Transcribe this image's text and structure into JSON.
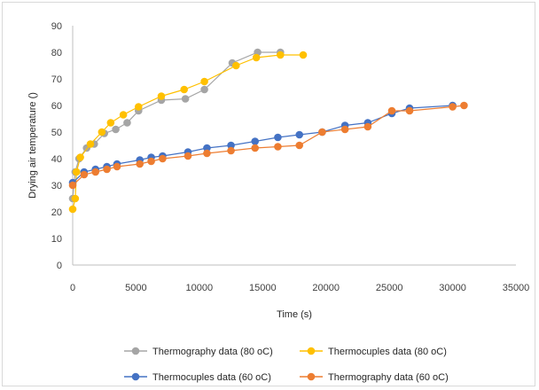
{
  "chart_data": {
    "type": "scatter",
    "title": "",
    "xlabel": "Time (s)",
    "ylabel": "Drying air temperature ()",
    "xlim": [
      0,
      35000
    ],
    "ylim": [
      0,
      90
    ],
    "x_ticks": [
      0,
      5000,
      10000,
      15000,
      20000,
      25000,
      30000,
      35000
    ],
    "y_ticks": [
      0,
      10,
      20,
      30,
      40,
      50,
      60,
      70,
      80,
      90
    ],
    "grid": false,
    "legend_position": "bottom",
    "series": [
      {
        "name": "Thermography data (80 oC)",
        "color": "#a5a5a5",
        "points": [
          [
            0,
            25
          ],
          [
            200,
            35
          ],
          [
            500,
            40
          ],
          [
            1100,
            44
          ],
          [
            1700,
            45.5
          ],
          [
            2500,
            49.5
          ],
          [
            3400,
            51
          ],
          [
            4300,
            53.5
          ],
          [
            5200,
            58
          ],
          [
            7000,
            62
          ],
          [
            8900,
            62.5
          ],
          [
            10400,
            66
          ],
          [
            12600,
            76
          ],
          [
            14600,
            80
          ],
          [
            16400,
            80
          ]
        ]
      },
      {
        "name": "Thermocuples data (80 oC)",
        "color": "#ffc000",
        "points": [
          [
            0,
            21
          ],
          [
            200,
            25
          ],
          [
            300,
            35
          ],
          [
            600,
            40.5
          ],
          [
            1400,
            45.5
          ],
          [
            2300,
            50
          ],
          [
            3000,
            53.5
          ],
          [
            4000,
            56.5
          ],
          [
            5200,
            59.5
          ],
          [
            7000,
            63.5
          ],
          [
            8800,
            66
          ],
          [
            10400,
            69
          ],
          [
            12900,
            75
          ],
          [
            14500,
            78
          ],
          [
            16400,
            79
          ],
          [
            18200,
            79
          ]
        ]
      },
      {
        "name": "Thermocuples data (60 oC)",
        "color": "#4472c4",
        "points": [
          [
            0,
            31
          ],
          [
            900,
            35
          ],
          [
            1800,
            36
          ],
          [
            2700,
            37
          ],
          [
            3500,
            38
          ],
          [
            5300,
            39.5
          ],
          [
            6200,
            40.5
          ],
          [
            7100,
            41
          ],
          [
            9100,
            42.5
          ],
          [
            10600,
            44
          ],
          [
            12500,
            45
          ],
          [
            14400,
            46.5
          ],
          [
            16200,
            48
          ],
          [
            17900,
            49
          ],
          [
            19700,
            50
          ],
          [
            21500,
            52.5
          ],
          [
            23300,
            53.5
          ],
          [
            25200,
            57
          ],
          [
            26600,
            59
          ],
          [
            30000,
            60
          ]
        ]
      },
      {
        "name": "Thermography data (60 oC)",
        "color": "#ed7d31",
        "points": [
          [
            0,
            30
          ],
          [
            900,
            34
          ],
          [
            1800,
            35
          ],
          [
            2700,
            36
          ],
          [
            3500,
            37
          ],
          [
            5300,
            38
          ],
          [
            6200,
            39
          ],
          [
            7100,
            40
          ],
          [
            9100,
            41
          ],
          [
            10600,
            42
          ],
          [
            12500,
            43
          ],
          [
            14400,
            44
          ],
          [
            16200,
            44.5
          ],
          [
            17900,
            45
          ],
          [
            19700,
            50
          ],
          [
            21500,
            51
          ],
          [
            23300,
            52
          ],
          [
            25200,
            58
          ],
          [
            26600,
            58
          ],
          [
            30000,
            59.5
          ],
          [
            30900,
            60
          ]
        ]
      }
    ]
  }
}
